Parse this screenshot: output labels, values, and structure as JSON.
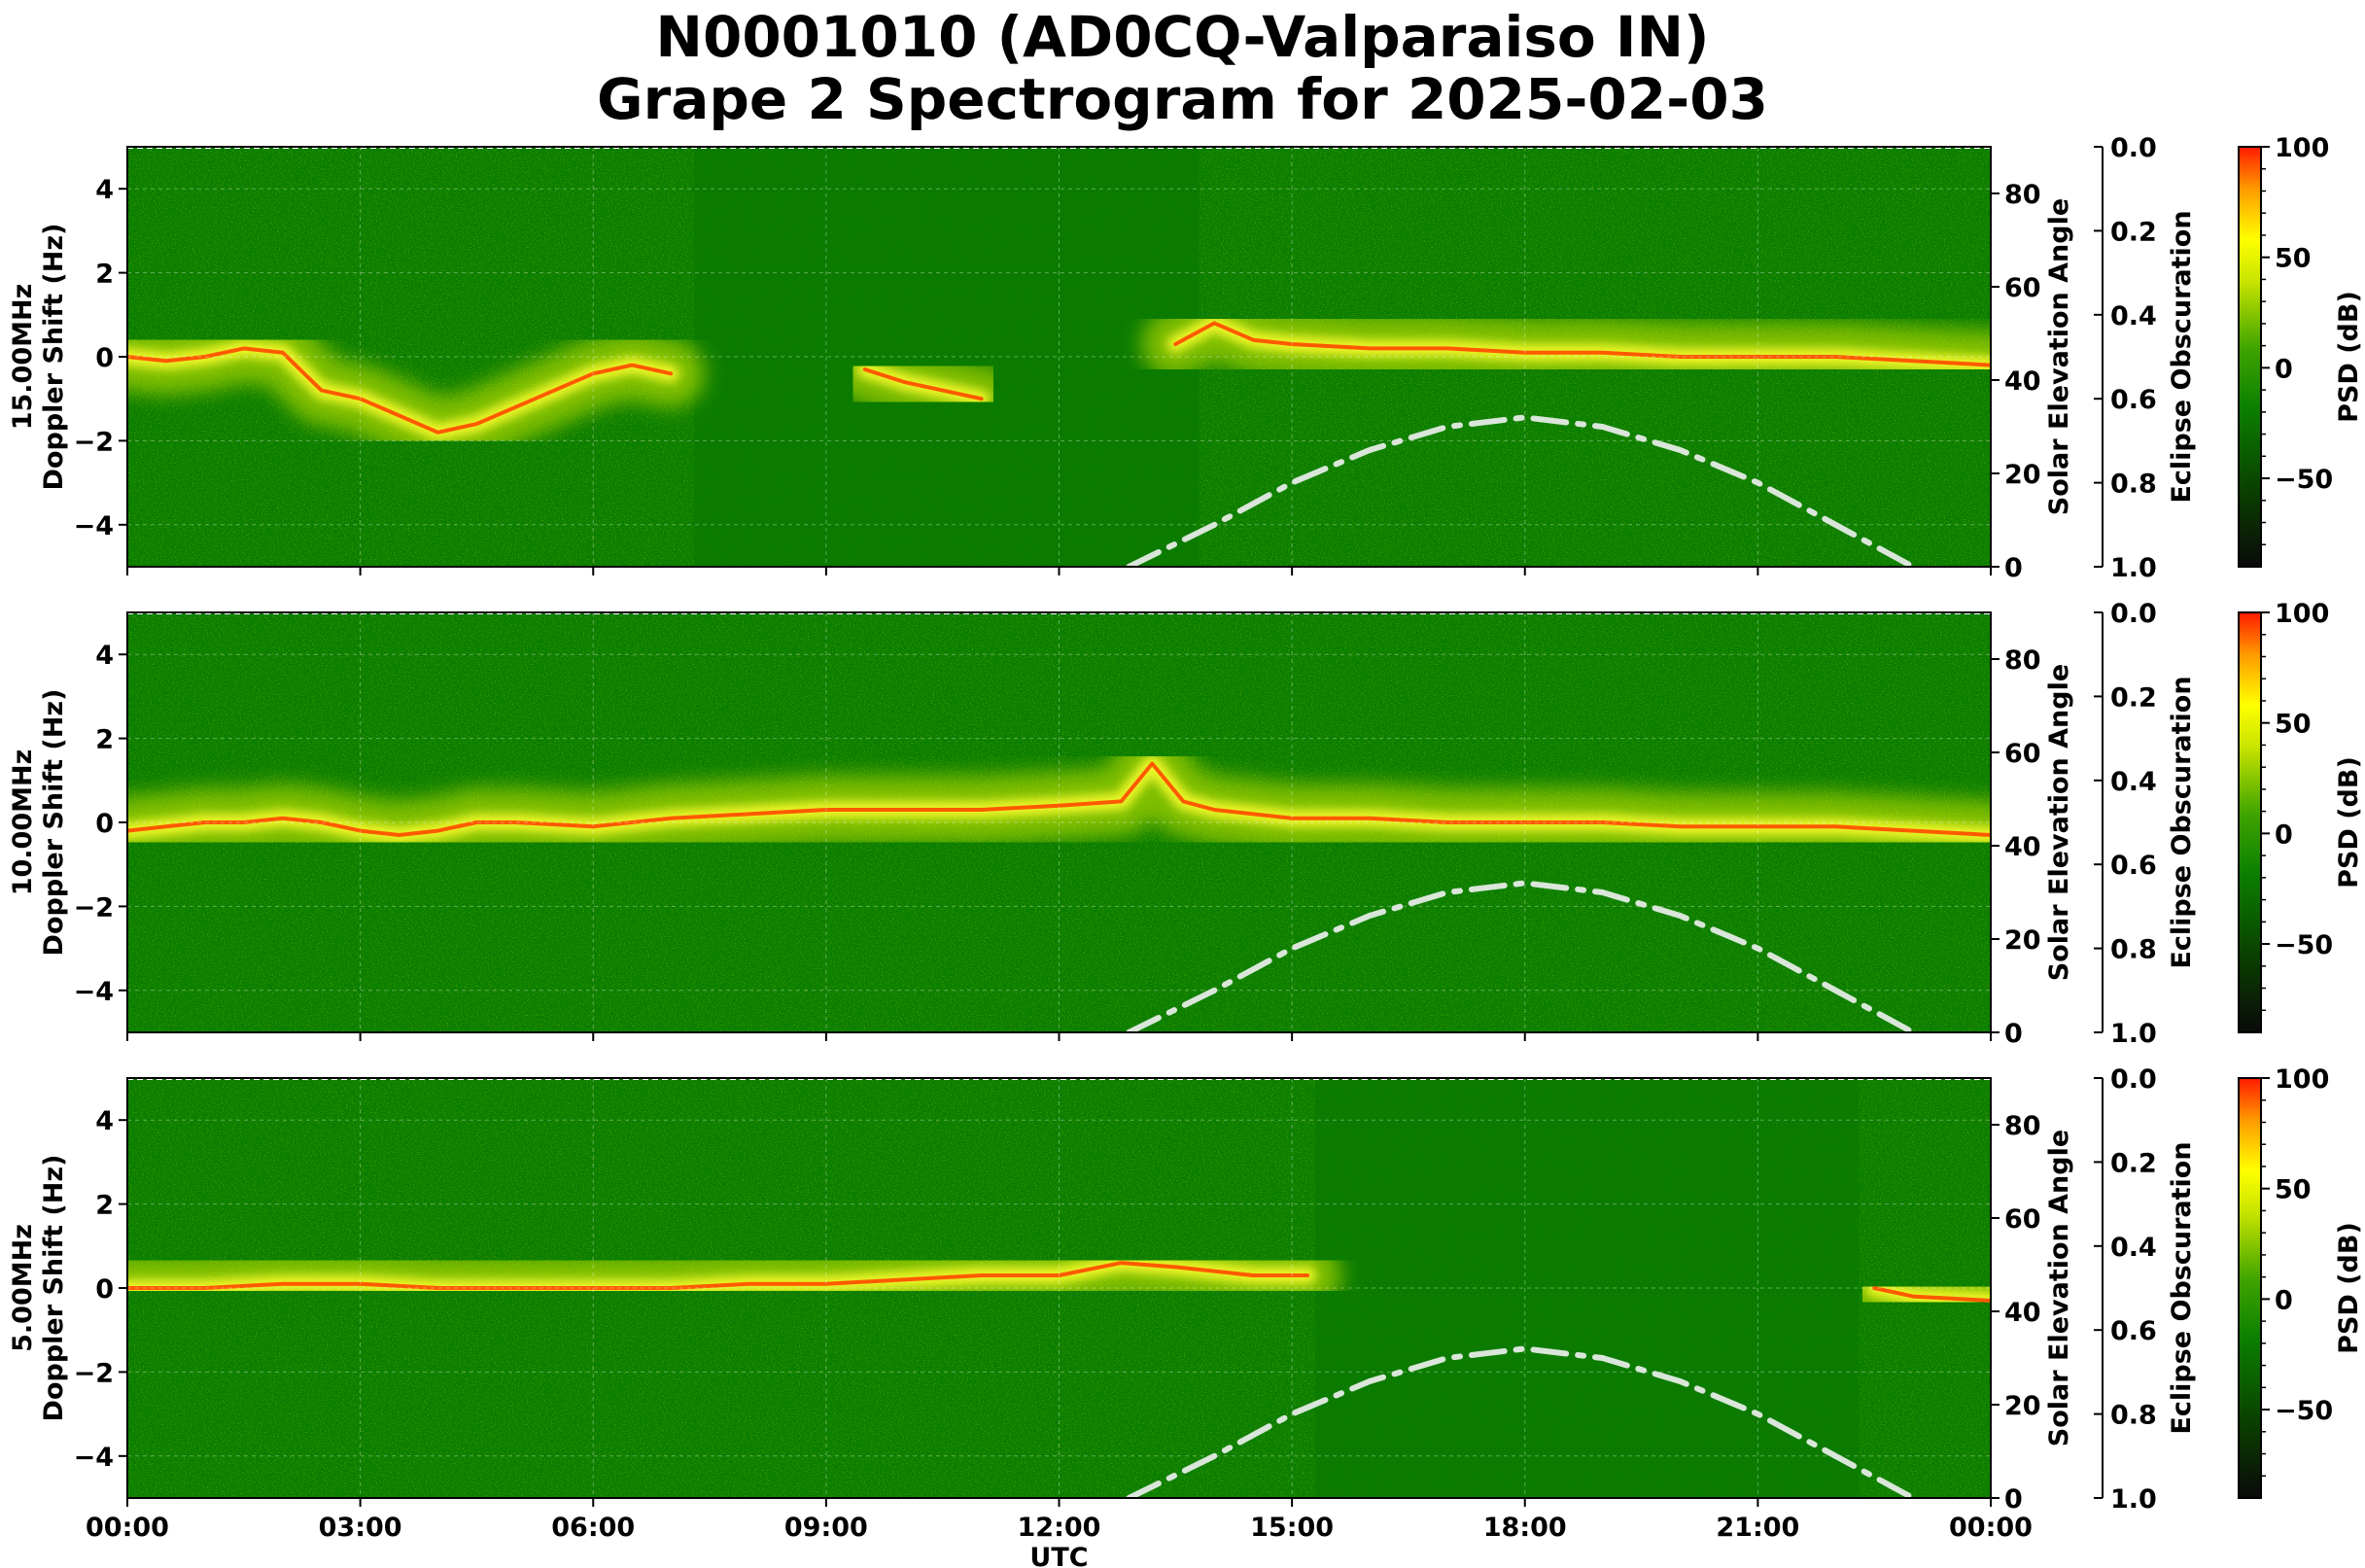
{
  "title": {
    "line1": "N0001010 (AD0CQ-Valparaiso IN)",
    "line2": "Grape 2 Spectrogram for 2025-02-03"
  },
  "colors": {
    "background_green": "#0a7d00",
    "colormap": [
      "#0a0a0a",
      "#0a3f00",
      "#0b8000",
      "#3fa400",
      "#c8e400",
      "#ffff00",
      "#ff9a00",
      "#ff1a00"
    ],
    "solar_curve": "#d9e6d9"
  },
  "chart_data": [
    {
      "type": "heatmap",
      "panel": "15.00MHz",
      "ylabel_line1": "15.00MHz",
      "ylabel_line2": "Doppler Shift (Hz)",
      "ylabel_right": "Solar Elevation Angle",
      "ylabel_eclipse": "Eclipse Obscuration",
      "colorbar_label": "PSD (dB)",
      "xlabel": "",
      "x_unit": "hours UTC",
      "xlim": [
        0,
        24
      ],
      "ylim": [
        -5,
        5
      ],
      "yticks": [
        "4",
        "2",
        "0",
        "−2",
        "−4"
      ],
      "right_ylim": [
        0,
        90
      ],
      "right_yticks": [
        "80",
        "60",
        "40",
        "20",
        "0"
      ],
      "eclipse_ticks": [
        "0.0",
        "0.2",
        "0.4",
        "0.6",
        "0.8",
        "1.0"
      ],
      "colorbar_ticks": [
        "100",
        "50",
        "0",
        "−50"
      ],
      "colorbar_range": [
        -90,
        100
      ],
      "xticklabels": [],
      "carrier_trace": [
        [
          0,
          0.0
        ],
        [
          0.5,
          -0.1
        ],
        [
          1,
          0.0
        ],
        [
          1.5,
          0.2
        ],
        [
          2,
          0.1
        ],
        [
          2.5,
          -0.8
        ],
        [
          3,
          -1.0
        ],
        [
          3.5,
          -1.4
        ],
        [
          4,
          -1.8
        ],
        [
          4.5,
          -1.6
        ],
        [
          5,
          -1.2
        ],
        [
          5.5,
          -0.8
        ],
        [
          6,
          -0.4
        ],
        [
          6.5,
          -0.2
        ],
        [
          7,
          -0.4
        ],
        [
          7.5,
          null
        ],
        [
          9.5,
          -0.3
        ],
        [
          10,
          -0.6
        ],
        [
          11,
          -1.0
        ],
        [
          12,
          null
        ],
        [
          13.5,
          0.3
        ],
        [
          14,
          0.8
        ],
        [
          14.5,
          0.4
        ],
        [
          15,
          0.3
        ],
        [
          16,
          0.2
        ],
        [
          17,
          0.2
        ],
        [
          18,
          0.1
        ],
        [
          19,
          0.1
        ],
        [
          20,
          0.0
        ],
        [
          21,
          0.0
        ],
        [
          22,
          0.0
        ],
        [
          23,
          -0.1
        ],
        [
          24,
          -0.2
        ]
      ],
      "quiet_intervals": [
        [
          7.3,
          13.8
        ]
      ],
      "solar_elevation": [
        [
          12.9,
          0
        ],
        [
          14,
          9
        ],
        [
          15,
          18
        ],
        [
          16,
          25
        ],
        [
          17,
          30
        ],
        [
          18,
          32
        ],
        [
          19,
          30
        ],
        [
          20,
          25
        ],
        [
          21,
          18
        ],
        [
          22,
          9
        ],
        [
          23,
          0
        ]
      ]
    },
    {
      "type": "heatmap",
      "panel": "10.00MHz",
      "ylabel_line1": "10.00MHz",
      "ylabel_line2": "Doppler Shift (Hz)",
      "ylabel_right": "Solar Elevation Angle",
      "ylabel_eclipse": "Eclipse Obscuration",
      "colorbar_label": "PSD (dB)",
      "xlabel": "",
      "x_unit": "hours UTC",
      "xlim": [
        0,
        24
      ],
      "ylim": [
        -5,
        5
      ],
      "yticks": [
        "4",
        "2",
        "0",
        "−2",
        "−4"
      ],
      "right_ylim": [
        0,
        90
      ],
      "right_yticks": [
        "80",
        "60",
        "40",
        "20",
        "0"
      ],
      "eclipse_ticks": [
        "0.0",
        "0.2",
        "0.4",
        "0.6",
        "0.8",
        "1.0"
      ],
      "colorbar_ticks": [
        "100",
        "50",
        "0",
        "−50"
      ],
      "colorbar_range": [
        -90,
        100
      ],
      "xticklabels": [],
      "carrier_trace": [
        [
          0,
          -0.2
        ],
        [
          0.5,
          -0.1
        ],
        [
          1,
          0.0
        ],
        [
          1.5,
          0.0
        ],
        [
          2,
          0.1
        ],
        [
          2.5,
          0.0
        ],
        [
          3,
          -0.2
        ],
        [
          3.5,
          -0.3
        ],
        [
          4,
          -0.2
        ],
        [
          4.5,
          0.0
        ],
        [
          5,
          0.0
        ],
        [
          6,
          -0.1
        ],
        [
          7,
          0.1
        ],
        [
          8,
          0.2
        ],
        [
          9,
          0.3
        ],
        [
          10,
          0.3
        ],
        [
          11,
          0.3
        ],
        [
          12,
          0.4
        ],
        [
          12.8,
          0.5
        ],
        [
          13.2,
          1.4
        ],
        [
          13.6,
          0.5
        ],
        [
          14,
          0.3
        ],
        [
          15,
          0.1
        ],
        [
          16,
          0.1
        ],
        [
          17,
          0.0
        ],
        [
          18,
          0.0
        ],
        [
          19,
          0.0
        ],
        [
          20,
          -0.1
        ],
        [
          21,
          -0.1
        ],
        [
          22,
          -0.1
        ],
        [
          23,
          -0.2
        ],
        [
          24,
          -0.3
        ]
      ],
      "quiet_intervals": [],
      "solar_elevation": [
        [
          12.9,
          0
        ],
        [
          14,
          9
        ],
        [
          15,
          18
        ],
        [
          16,
          25
        ],
        [
          17,
          30
        ],
        [
          18,
          32
        ],
        [
          19,
          30
        ],
        [
          20,
          25
        ],
        [
          21,
          18
        ],
        [
          22,
          9
        ],
        [
          23,
          0
        ]
      ]
    },
    {
      "type": "heatmap",
      "panel": "5.00MHz",
      "ylabel_line1": "5.00MHz",
      "ylabel_line2": "Doppler Shift (Hz)",
      "ylabel_right": "Solar Elevation Angle",
      "ylabel_eclipse": "Eclipse Obscuration",
      "colorbar_label": "PSD (dB)",
      "xlabel": "UTC",
      "x_unit": "hours UTC",
      "xlim": [
        0,
        24
      ],
      "ylim": [
        -5,
        5
      ],
      "yticks": [
        "4",
        "2",
        "0",
        "−2",
        "−4"
      ],
      "right_ylim": [
        0,
        90
      ],
      "right_yticks": [
        "80",
        "60",
        "40",
        "20",
        "0"
      ],
      "eclipse_ticks": [
        "0.0",
        "0.2",
        "0.4",
        "0.6",
        "0.8",
        "1.0"
      ],
      "colorbar_ticks": [
        "100",
        "50",
        "0",
        "−50"
      ],
      "colorbar_range": [
        -90,
        100
      ],
      "xticklabels": [
        "00:00",
        "03:00",
        "06:00",
        "09:00",
        "12:00",
        "15:00",
        "18:00",
        "21:00",
        "00:00"
      ],
      "carrier_trace": [
        [
          0,
          0.0
        ],
        [
          1,
          0.0
        ],
        [
          2,
          0.1
        ],
        [
          3,
          0.1
        ],
        [
          4,
          0.0
        ],
        [
          5,
          0.0
        ],
        [
          6,
          0.0
        ],
        [
          7,
          0.0
        ],
        [
          8,
          0.1
        ],
        [
          9,
          0.1
        ],
        [
          10,
          0.2
        ],
        [
          11,
          0.3
        ],
        [
          12,
          0.3
        ],
        [
          12.8,
          0.6
        ],
        [
          13.5,
          0.5
        ],
        [
          14.5,
          0.3
        ],
        [
          15.2,
          0.3
        ],
        [
          15.3,
          null
        ],
        [
          22.5,
          0.0
        ],
        [
          23,
          -0.2
        ],
        [
          24,
          -0.3
        ]
      ],
      "quiet_intervals": [
        [
          15.3,
          22.3
        ]
      ],
      "solar_elevation": [
        [
          12.9,
          0
        ],
        [
          14,
          9
        ],
        [
          15,
          18
        ],
        [
          16,
          25
        ],
        [
          17,
          30
        ],
        [
          18,
          32
        ],
        [
          19,
          30
        ],
        [
          20,
          25
        ],
        [
          21,
          18
        ],
        [
          22,
          9
        ],
        [
          23,
          0
        ]
      ]
    }
  ]
}
